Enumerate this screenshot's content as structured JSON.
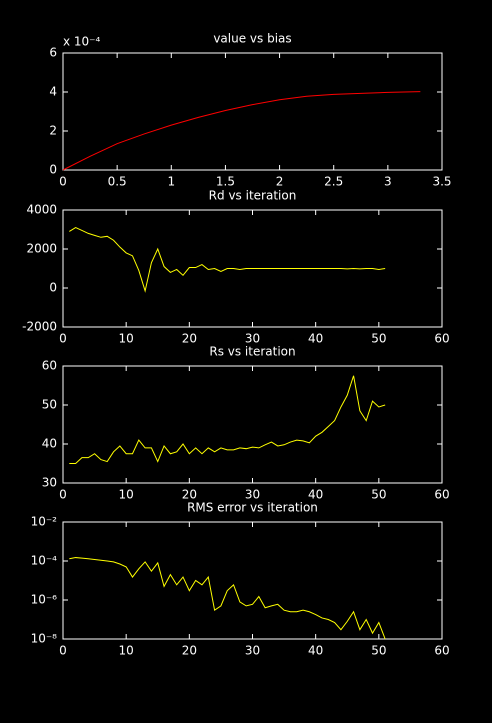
{
  "chart_data": [
    {
      "type": "line",
      "title": "value vs bias",
      "y_exponent_label": "x 10⁻⁴",
      "color": "#ff0000",
      "x": [
        0,
        0.25,
        0.5,
        0.75,
        1,
        1.25,
        1.5,
        1.75,
        2,
        2.25,
        2.5,
        2.75,
        3,
        3.3
      ],
      "values": [
        0,
        0.7,
        1.35,
        1.85,
        2.3,
        2.7,
        3.05,
        3.35,
        3.6,
        3.78,
        3.88,
        3.93,
        3.98,
        4.02
      ],
      "xlim": [
        0,
        3.5
      ],
      "ylim": [
        0,
        6
      ],
      "xticks": [
        0,
        0.5,
        1,
        1.5,
        2,
        2.5,
        3,
        3.5
      ],
      "yticks": [
        0,
        2,
        4,
        6
      ]
    },
    {
      "type": "line",
      "title": "Rd vs iteration",
      "color": "#ffff00",
      "x": [
        1,
        2,
        3,
        4,
        5,
        6,
        7,
        8,
        9,
        10,
        11,
        12,
        13,
        14,
        15,
        16,
        17,
        18,
        19,
        20,
        21,
        22,
        23,
        24,
        25,
        26,
        27,
        28,
        29,
        30,
        31,
        32,
        33,
        34,
        35,
        36,
        37,
        38,
        39,
        40,
        41,
        42,
        43,
        44,
        45,
        46,
        47,
        48,
        49,
        50,
        51
      ],
      "values": [
        2900,
        3100,
        2950,
        2800,
        2700,
        2600,
        2650,
        2450,
        2100,
        1800,
        1650,
        900,
        -150,
        1300,
        2000,
        1100,
        800,
        950,
        650,
        1050,
        1050,
        1200,
        950,
        1000,
        850,
        1000,
        1000,
        950,
        1000,
        1000,
        1000,
        1000,
        1000,
        1000,
        1000,
        1000,
        1000,
        1000,
        1000,
        1000,
        1000,
        1000,
        1000,
        1000,
        980,
        1000,
        980,
        1000,
        1000,
        950,
        1000
      ],
      "xlim": [
        0,
        60
      ],
      "ylim": [
        -2000,
        4000
      ],
      "xticks": [
        0,
        10,
        20,
        30,
        40,
        50,
        60
      ],
      "yticks": [
        -2000,
        0,
        2000,
        4000
      ]
    },
    {
      "type": "line",
      "title": "Rs vs iteration",
      "color": "#ffff00",
      "x": [
        1,
        2,
        3,
        4,
        5,
        6,
        7,
        8,
        9,
        10,
        11,
        12,
        13,
        14,
        15,
        16,
        17,
        18,
        19,
        20,
        21,
        22,
        23,
        24,
        25,
        26,
        27,
        28,
        29,
        30,
        31,
        32,
        33,
        34,
        35,
        36,
        37,
        38,
        39,
        40,
        41,
        42,
        43,
        44,
        45,
        46,
        47,
        48,
        49,
        50,
        51
      ],
      "values": [
        35,
        35,
        36.5,
        36.5,
        37.5,
        36,
        35.5,
        38,
        39.5,
        37.5,
        37.5,
        41,
        39,
        39,
        35.5,
        39.5,
        37.5,
        38,
        40,
        37.5,
        39,
        37.5,
        39,
        38,
        39,
        38.5,
        38.5,
        39,
        38.8,
        39.2,
        39,
        39.8,
        40.5,
        39.5,
        39.8,
        40.5,
        41,
        40.8,
        40.3,
        42,
        43,
        44.5,
        46,
        49.5,
        52.5,
        57.5,
        48.5,
        46,
        51,
        49.5,
        50
      ],
      "xlim": [
        0,
        60
      ],
      "ylim": [
        30,
        60
      ],
      "xticks": [
        0,
        10,
        20,
        30,
        40,
        50,
        60
      ],
      "yticks": [
        30,
        40,
        50,
        60
      ]
    },
    {
      "type": "line",
      "title": "RMS error vs iteration",
      "color": "#ffff00",
      "yscale": "log",
      "x": [
        1,
        2,
        3,
        4,
        5,
        6,
        7,
        8,
        9,
        10,
        11,
        12,
        13,
        14,
        15,
        16,
        17,
        18,
        19,
        20,
        21,
        22,
        23,
        24,
        25,
        26,
        27,
        28,
        29,
        30,
        31,
        32,
        33,
        34,
        35,
        36,
        37,
        38,
        39,
        40,
        41,
        42,
        43,
        44,
        45,
        46,
        47,
        48,
        49,
        50,
        51
      ],
      "values": [
        0.00013,
        0.00015,
        0.00014,
        0.00013,
        0.00012,
        0.00011,
        0.0001,
        9e-05,
        7e-05,
        5e-05,
        1.5e-05,
        4e-05,
        9e-05,
        3e-05,
        8e-05,
        5e-06,
        2e-05,
        6e-06,
        1.5e-05,
        3e-06,
        1e-05,
        6e-06,
        1.5e-05,
        3e-07,
        5e-07,
        3e-06,
        6e-06,
        8e-07,
        5e-07,
        6e-07,
        1.5e-06,
        4e-07,
        5e-07,
        6e-07,
        3e-07,
        2.5e-07,
        2.5e-07,
        3e-07,
        2.5e-07,
        1.8e-07,
        1.2e-07,
        1e-07,
        7e-08,
        3e-08,
        8e-08,
        2.5e-07,
        3e-08,
        1e-07,
        2e-08,
        7e-08,
        1e-08
      ],
      "xlim": [
        0,
        60
      ],
      "ylim": [
        1e-08,
        0.01
      ],
      "xticks": [
        0,
        10,
        20,
        30,
        40,
        50,
        60
      ],
      "yticks": [
        {
          "value": 1e-08,
          "label": "10⁻⁸"
        },
        {
          "value": 1e-06,
          "label": "10⁻⁶"
        },
        {
          "value": 0.0001,
          "label": "10⁻⁴"
        },
        {
          "value": 0.01,
          "label": "10⁻²"
        }
      ]
    }
  ]
}
